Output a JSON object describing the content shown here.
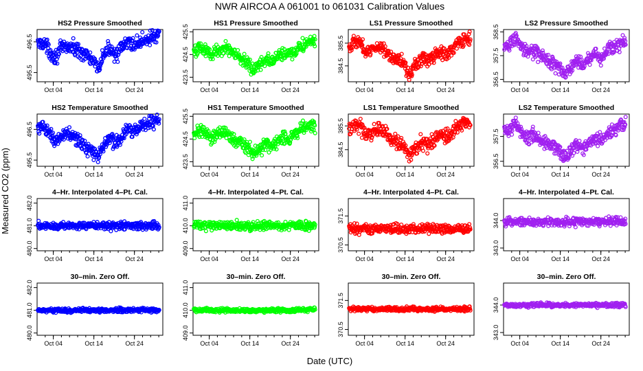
{
  "figure": {
    "title": "NWR   AIRCOA A   061001 to 061031   Calibration Values",
    "xlabel": "Date (UTC)",
    "ylabel": "Measured CO2 (ppm)"
  },
  "chart_data": [
    {
      "type": "scatter",
      "title": "HS2 Pressure Smoothed",
      "color": "#0000ff",
      "xlim": [
        0,
        31
      ],
      "ylim": [
        495.2,
        496.9
      ],
      "xticks": [
        4,
        14,
        24
      ],
      "xtick_labels": [
        "Oct 04",
        "Oct 14",
        "Oct 24"
      ],
      "yticks": [
        495.5,
        496.5
      ],
      "ytick_labels": [
        "495.5",
        "496.5"
      ],
      "series": {
        "x": [
          0,
          1.5,
          3,
          4.5,
          6,
          7.5,
          9,
          10.5,
          12,
          13.5,
          15,
          16.5,
          18,
          19.5,
          21,
          22.5,
          24,
          25.5,
          27,
          28.5,
          30
        ],
        "y": [
          496.4,
          496.5,
          496.2,
          496.0,
          496.3,
          496.35,
          496.3,
          496.2,
          496.1,
          495.9,
          495.6,
          496.1,
          496.3,
          496.1,
          496.3,
          496.5,
          496.4,
          496.5,
          496.6,
          496.65,
          496.7
        ],
        "spread": 0.18
      }
    },
    {
      "type": "scatter",
      "title": "HS1 Pressure Smoothed",
      "color": "#00ff00",
      "xlim": [
        0,
        31
      ],
      "ylim": [
        423.3,
        425.6
      ],
      "xticks": [
        4,
        14,
        24
      ],
      "xtick_labels": [
        "Oct 04",
        "Oct 14",
        "Oct 24"
      ],
      "yticks": [
        423.5,
        424.5,
        425.5
      ],
      "ytick_labels": [
        "423.5",
        "424.5",
        "425.5"
      ],
      "series": {
        "x": [
          0,
          1.5,
          3,
          4.5,
          6,
          7.5,
          9,
          10.5,
          12,
          13.5,
          15,
          16.5,
          18,
          19.5,
          21,
          22.5,
          24,
          25.5,
          27,
          28.5,
          30
        ],
        "y": [
          424.6,
          424.8,
          424.7,
          424.5,
          424.7,
          424.8,
          424.7,
          424.5,
          424.3,
          424.1,
          423.8,
          424.1,
          424.3,
          424.2,
          424.4,
          424.6,
          424.5,
          424.7,
          424.9,
          425.0,
          425.1
        ],
        "spread": 0.22
      }
    },
    {
      "type": "scatter",
      "title": "LS1 Pressure Smoothed",
      "color": "#ff0000",
      "xlim": [
        0,
        31
      ],
      "ylim": [
        383.8,
        386.1
      ],
      "xticks": [
        4,
        14,
        24
      ],
      "xtick_labels": [
        "Oct 04",
        "Oct 14",
        "Oct 24"
      ],
      "yticks": [
        384.5,
        385.5
      ],
      "ytick_labels": [
        "384.5",
        "385.5"
      ],
      "series": {
        "x": [
          0,
          1.5,
          3,
          4.5,
          6,
          7.5,
          9,
          10.5,
          12,
          13.5,
          15,
          16.5,
          18,
          19.5,
          21,
          22.5,
          24,
          25.5,
          27,
          28.5,
          30
        ],
        "y": [
          385.3,
          385.6,
          385.5,
          385.1,
          385.2,
          385.4,
          385.2,
          384.9,
          384.8,
          384.7,
          384.1,
          384.6,
          384.8,
          384.7,
          384.9,
          385.2,
          385.0,
          385.2,
          385.5,
          385.6,
          385.7
        ],
        "spread": 0.22
      }
    },
    {
      "type": "scatter",
      "title": "LS2 Pressure Smoothed",
      "color": "#a020f0",
      "xlim": [
        0,
        31
      ],
      "ylim": [
        356.4,
        358.6
      ],
      "xticks": [
        4,
        14,
        24
      ],
      "xtick_labels": [
        "Oct 04",
        "Oct 14",
        "Oct 24"
      ],
      "yticks": [
        356.5,
        357.5,
        358.5
      ],
      "ytick_labels": [
        "356.5",
        "357.5",
        "358.5"
      ],
      "series": {
        "x": [
          0,
          1.5,
          3,
          4.5,
          6,
          7.5,
          9,
          10.5,
          12,
          13.5,
          15,
          16.5,
          18,
          19.5,
          21,
          22.5,
          24,
          25.5,
          27,
          28.5,
          30
        ],
        "y": [
          357.8,
          358.0,
          358.3,
          357.8,
          357.6,
          357.7,
          357.5,
          357.3,
          357.2,
          357.1,
          356.7,
          357.0,
          357.3,
          357.1,
          357.3,
          357.6,
          357.4,
          357.7,
          357.9,
          358.0,
          358.1
        ],
        "spread": 0.22
      }
    },
    {
      "type": "scatter",
      "title": "HS2 Temperature Smoothed",
      "color": "#0000ff",
      "xlim": [
        0,
        31
      ],
      "ylim": [
        495.3,
        497.0
      ],
      "xticks": [
        4,
        14,
        24
      ],
      "xtick_labels": [
        "Oct 04",
        "Oct 14",
        "Oct 24"
      ],
      "yticks": [
        495.5,
        496.5
      ],
      "ytick_labels": [
        "495.5",
        "496.5"
      ],
      "series": {
        "x": [
          0,
          1.5,
          3,
          4.5,
          6,
          7.5,
          9,
          10.5,
          12,
          13.5,
          15,
          16.5,
          18,
          19.5,
          21,
          22.5,
          24,
          25.5,
          27,
          28.5,
          30
        ],
        "y": [
          496.5,
          496.6,
          496.4,
          496.1,
          496.3,
          496.4,
          496.3,
          496.1,
          495.9,
          495.8,
          495.6,
          496.0,
          496.2,
          496.1,
          496.3,
          496.5,
          496.4,
          496.6,
          496.7,
          496.75,
          496.8
        ],
        "spread": 0.18
      }
    },
    {
      "type": "scatter",
      "title": "HS1 Temperature Smoothed",
      "color": "#00ff00",
      "xlim": [
        0,
        31
      ],
      "ylim": [
        423.3,
        425.6
      ],
      "xticks": [
        4,
        14,
        24
      ],
      "xtick_labels": [
        "Oct 04",
        "Oct 14",
        "Oct 24"
      ],
      "yticks": [
        423.5,
        424.5,
        425.5
      ],
      "ytick_labels": [
        "423.5",
        "424.5",
        "425.5"
      ],
      "series": {
        "x": [
          0,
          1.5,
          3,
          4.5,
          6,
          7.5,
          9,
          10.5,
          12,
          13.5,
          15,
          16.5,
          18,
          19.5,
          21,
          22.5,
          24,
          25.5,
          27,
          28.5,
          30
        ],
        "y": [
          424.7,
          424.9,
          424.8,
          424.5,
          424.7,
          424.8,
          424.6,
          424.4,
          424.3,
          424.1,
          423.8,
          424.1,
          424.3,
          424.2,
          424.4,
          424.6,
          424.5,
          424.8,
          425.0,
          425.1,
          425.1
        ],
        "spread": 0.22
      }
    },
    {
      "type": "scatter",
      "title": "LS1 Temperature Smoothed",
      "color": "#ff0000",
      "xlim": [
        0,
        31
      ],
      "ylim": [
        383.8,
        386.0
      ],
      "xticks": [
        4,
        14,
        24
      ],
      "xtick_labels": [
        "Oct 04",
        "Oct 14",
        "Oct 24"
      ],
      "yticks": [
        384.5,
        385.5
      ],
      "ytick_labels": [
        "384.5",
        "385.5"
      ],
      "series": {
        "x": [
          0,
          1.5,
          3,
          4.5,
          6,
          7.5,
          9,
          10.5,
          12,
          13.5,
          15,
          16.5,
          18,
          19.5,
          21,
          22.5,
          24,
          25.5,
          27,
          28.5,
          30
        ],
        "y": [
          385.4,
          385.6,
          385.5,
          385.1,
          385.2,
          385.4,
          385.2,
          384.9,
          384.8,
          384.7,
          384.2,
          384.6,
          384.8,
          384.7,
          384.9,
          385.2,
          385.0,
          385.2,
          385.5,
          385.6,
          385.7
        ],
        "spread": 0.22
      }
    },
    {
      "type": "scatter",
      "title": "LS2 Temperature Smoothed",
      "color": "#a020f0",
      "xlim": [
        0,
        31
      ],
      "ylim": [
        356.3,
        358.4
      ],
      "xticks": [
        4,
        14,
        24
      ],
      "xtick_labels": [
        "Oct 04",
        "Oct 14",
        "Oct 24"
      ],
      "yticks": [
        356.5,
        357.5
      ],
      "ytick_labels": [
        "356.5",
        "357.5"
      ],
      "series": {
        "x": [
          0,
          1.5,
          3,
          4.5,
          6,
          7.5,
          9,
          10.5,
          12,
          13.5,
          15,
          16.5,
          18,
          19.5,
          21,
          22.5,
          24,
          25.5,
          27,
          28.5,
          30
        ],
        "y": [
          357.7,
          357.9,
          358.0,
          357.6,
          357.5,
          357.6,
          357.4,
          357.2,
          357.1,
          357.0,
          356.6,
          356.9,
          357.2,
          357.0,
          357.2,
          357.5,
          357.3,
          357.6,
          357.8,
          357.9,
          358.0
        ],
        "spread": 0.22
      }
    },
    {
      "type": "scatter",
      "title": "4–Hr. Interpolated 4–Pt. Cal.",
      "color": "#0000ff",
      "xlim": [
        0,
        31
      ],
      "ylim": [
        479.9,
        482.2
      ],
      "xticks": [
        4,
        14,
        24
      ],
      "xtick_labels": [
        "Oct 04",
        "Oct 14",
        "Oct 24"
      ],
      "yticks": [
        480.0,
        481.0,
        482.0
      ],
      "ytick_labels": [
        "480.0",
        "481.0",
        "482.0"
      ],
      "series": {
        "x": [
          0,
          5,
          10,
          15,
          20,
          25,
          30
        ],
        "y": [
          481.0,
          481.0,
          481.0,
          481.0,
          481.0,
          481.0,
          481.0
        ],
        "spread": 0.14
      }
    },
    {
      "type": "scatter",
      "title": "4–Hr. Interpolated 4–Pt. Cal.",
      "color": "#00ff00",
      "xlim": [
        0,
        31
      ],
      "ylim": [
        408.9,
        411.2
      ],
      "xticks": [
        4,
        14,
        24
      ],
      "xtick_labels": [
        "Oct 04",
        "Oct 14",
        "Oct 24"
      ],
      "yticks": [
        409.0,
        410.0,
        411.0
      ],
      "ytick_labels": [
        "409.0",
        "410.0",
        "411.0"
      ],
      "series": {
        "x": [
          0,
          5,
          10,
          15,
          20,
          25,
          30
        ],
        "y": [
          410.0,
          410.0,
          410.0,
          410.0,
          410.0,
          410.0,
          410.0
        ],
        "spread": 0.15
      }
    },
    {
      "type": "scatter",
      "title": "4–Hr. Interpolated 4–Pt. Cal.",
      "color": "#ff0000",
      "xlim": [
        0,
        31
      ],
      "ylim": [
        370.3,
        372.1
      ],
      "xticks": [
        4,
        14,
        24
      ],
      "xtick_labels": [
        "Oct 04",
        "Oct 14",
        "Oct 24"
      ],
      "yticks": [
        370.5,
        371.5
      ],
      "ytick_labels": [
        "370.5",
        "371.5"
      ],
      "series": {
        "x": [
          0,
          5,
          10,
          15,
          20,
          25,
          30
        ],
        "y": [
          371.05,
          371.05,
          371.05,
          371.05,
          371.05,
          371.05,
          371.05
        ],
        "spread": 0.12
      }
    },
    {
      "type": "scatter",
      "title": "4–Hr. Interpolated 4–Pt. Cal.",
      "color": "#a020f0",
      "xlim": [
        0,
        31
      ],
      "ylim": [
        342.9,
        344.8
      ],
      "xticks": [
        4,
        14,
        24
      ],
      "xtick_labels": [
        "Oct 04",
        "Oct 14",
        "Oct 24"
      ],
      "yticks": [
        343.0,
        344.0
      ],
      "ytick_labels": [
        "343.0",
        "344.0"
      ],
      "series": {
        "x": [
          0,
          5,
          10,
          15,
          20,
          25,
          30
        ],
        "y": [
          343.95,
          343.95,
          343.95,
          343.95,
          343.95,
          343.95,
          343.95
        ],
        "spread": 0.12
      }
    },
    {
      "type": "scatter",
      "title": "30–min. Zero Off.",
      "color": "#0000ff",
      "xlim": [
        0,
        31
      ],
      "ylim": [
        479.9,
        482.2
      ],
      "xticks": [
        4,
        14,
        24
      ],
      "xtick_labels": [
        "Oct 04",
        "Oct 14",
        "Oct 24"
      ],
      "yticks": [
        480.0,
        481.0,
        482.0
      ],
      "ytick_labels": [
        "480.0",
        "481.0",
        "482.0"
      ],
      "series": {
        "x": [
          0,
          5,
          10,
          15,
          20,
          25,
          30
        ],
        "y": [
          481.0,
          481.0,
          481.0,
          481.0,
          481.0,
          481.0,
          481.0
        ],
        "spread": 0.07
      }
    },
    {
      "type": "scatter",
      "title": "30–min. Zero Off.",
      "color": "#00ff00",
      "xlim": [
        0,
        31
      ],
      "ylim": [
        408.9,
        411.2
      ],
      "xticks": [
        4,
        14,
        24
      ],
      "xtick_labels": [
        "Oct 04",
        "Oct 14",
        "Oct 24"
      ],
      "yticks": [
        409.0,
        410.0,
        411.0
      ],
      "ytick_labels": [
        "409.0",
        "410.0",
        "411.0"
      ],
      "series": {
        "x": [
          0,
          5,
          10,
          15,
          20,
          25,
          30
        ],
        "y": [
          410.0,
          410.0,
          410.0,
          410.0,
          410.0,
          410.0,
          410.05
        ],
        "spread": 0.07
      }
    },
    {
      "type": "scatter",
      "title": "30–min. Zero Off.",
      "color": "#ff0000",
      "xlim": [
        0,
        31
      ],
      "ylim": [
        370.3,
        372.1
      ],
      "xticks": [
        4,
        14,
        24
      ],
      "xtick_labels": [
        "Oct 04",
        "Oct 14",
        "Oct 24"
      ],
      "yticks": [
        370.5,
        371.5
      ],
      "ytick_labels": [
        "370.5",
        "371.5"
      ],
      "series": {
        "x": [
          0,
          5,
          10,
          15,
          20,
          25,
          30
        ],
        "y": [
          371.2,
          371.2,
          371.2,
          371.2,
          371.2,
          371.2,
          371.2
        ],
        "spread": 0.06
      }
    },
    {
      "type": "scatter",
      "title": "30–min. Zero Off.",
      "color": "#a020f0",
      "xlim": [
        0,
        31
      ],
      "ylim": [
        342.9,
        344.8
      ],
      "xticks": [
        4,
        14,
        24
      ],
      "xtick_labels": [
        "Oct 04",
        "Oct 14",
        "Oct 24"
      ],
      "yticks": [
        343.0,
        344.0
      ],
      "ytick_labels": [
        "343.0",
        "344.0"
      ],
      "series": {
        "x": [
          0,
          5,
          10,
          15,
          20,
          25,
          30
        ],
        "y": [
          344.0,
          344.0,
          344.0,
          344.0,
          344.0,
          344.0,
          344.0
        ],
        "spread": 0.06
      }
    }
  ]
}
